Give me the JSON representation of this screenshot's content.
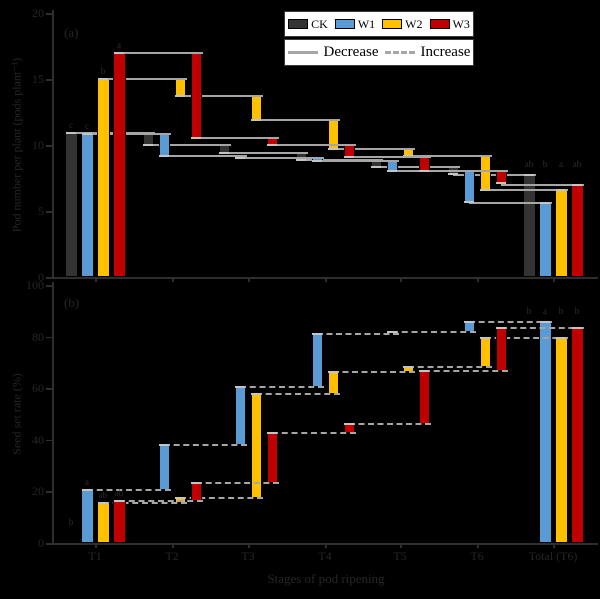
{
  "page_background": "#000000",
  "text_color": "#262626",
  "connector_color": "#a6a6a6",
  "legend": {
    "items": [
      {
        "label": "CK",
        "color": "#333333"
      },
      {
        "label": "W1",
        "color": "#5b9bd5"
      },
      {
        "label": "W2",
        "color": "#ffc000"
      },
      {
        "label": "W3",
        "color": "#c00000"
      }
    ],
    "decrease_label": "Decrease",
    "increase_label": "Increase"
  },
  "xaxis_title": "Stages of pod ripening",
  "chart_data": [
    {
      "type": "bar",
      "subtype": "waterfall-decrease",
      "tag": "(a)",
      "ylabel": "Pod number per plant (pods plant⁻¹)",
      "xlabel": "",
      "ylim": [
        0,
        20
      ],
      "yticks": [
        0,
        5,
        10,
        15,
        20
      ],
      "categories": [
        "T1",
        "T2",
        "T3",
        "T4",
        "T5",
        "T6",
        "Total (T6)"
      ],
      "connector_style": "solid",
      "series": [
        {
          "name": "CK",
          "color": "#333333",
          "cumulative": [
            10.9,
            10.0,
            9.4,
            8.9,
            8.3,
            7.8
          ],
          "total": 7.7,
          "letter_t1": "c",
          "letter_total": "ab"
        },
        {
          "name": "W1",
          "color": "#5b9bd5",
          "cumulative": [
            10.8,
            9.2,
            9.0,
            8.8,
            8.0,
            5.7
          ],
          "total": 5.6,
          "letter_t1": "c",
          "letter_total": "b"
        },
        {
          "name": "W2",
          "color": "#ffc000",
          "cumulative": [
            15.0,
            13.7,
            11.9,
            9.7,
            9.2,
            6.6
          ],
          "total": 6.6,
          "letter_t1": "b",
          "letter_total": "a"
        },
        {
          "name": "W3",
          "color": "#c00000",
          "cumulative": [
            17.0,
            10.5,
            10.0,
            9.1,
            8.0,
            7.1
          ],
          "total": 7.0,
          "letter_t1": "a",
          "letter_total": "ab"
        }
      ]
    },
    {
      "type": "bar",
      "subtype": "waterfall-increase",
      "tag": "(b)",
      "ylabel": "Seed set rate (%)",
      "xlabel": "Stages of pod ripening",
      "ylim": [
        0,
        100
      ],
      "yticks": [
        0,
        20,
        40,
        60,
        80,
        100
      ],
      "categories": [
        "T1",
        "T2",
        "T3",
        "T4",
        "T5",
        "T6",
        "Total (T6)"
      ],
      "connector_style": "dashed",
      "series": [
        {
          "name": "CK",
          "color": "#333333",
          "cumulative": null,
          "total": null,
          "letter_t1": "b",
          "letter_total": "b"
        },
        {
          "name": "W1",
          "color": "#5b9bd5",
          "cumulative": [
            20.5,
            38.0,
            60.5,
            81.0,
            81.6,
            85.7
          ],
          "total": 85.7,
          "letter_t1": "a",
          "letter_total": "a"
        },
        {
          "name": "W2",
          "color": "#ffc000",
          "cumulative": [
            15.5,
            17.5,
            57.7,
            66.3,
            68.2,
            79.5
          ],
          "total": 79.5,
          "letter_t1": "ab",
          "letter_total": "b"
        },
        {
          "name": "W3",
          "color": "#c00000",
          "cumulative": [
            16.3,
            23.3,
            42.6,
            46.1,
            66.7,
            83.3
          ],
          "total": 83.3,
          "letter_t1": "ab",
          "letter_total": "b"
        }
      ]
    }
  ]
}
